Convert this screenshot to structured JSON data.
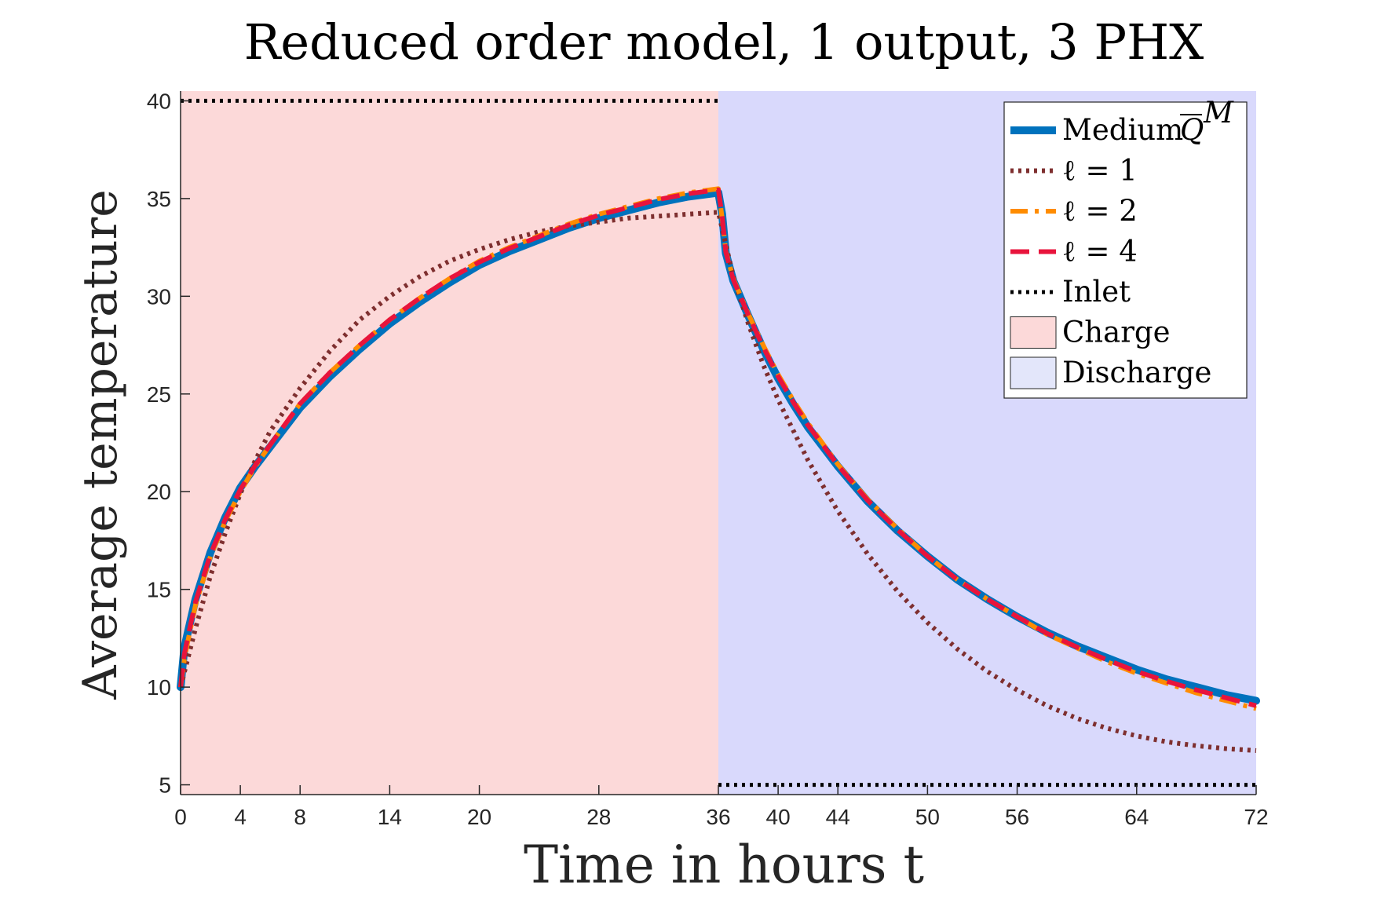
{
  "chart_data": {
    "type": "line",
    "title": "Reduced order model, 1 output, 3 PHX",
    "xlabel": "Time in hours t",
    "ylabel": "Average temperature",
    "xlim": [
      0,
      72
    ],
    "ylim": [
      4.5,
      40.5
    ],
    "xticks": [
      0,
      4,
      8,
      14,
      20,
      28,
      36,
      40,
      44,
      50,
      56,
      64,
      72
    ],
    "yticks": [
      5,
      10,
      15,
      20,
      25,
      30,
      35,
      40
    ],
    "grid": false,
    "legend_position": "top-right",
    "regions": [
      {
        "name": "Charge",
        "x_start": 0,
        "x_end": 36,
        "color": "#fcd9d9"
      },
      {
        "name": "Discharge",
        "x_start": 36,
        "x_end": 72,
        "color": "#d9d9fc"
      }
    ],
    "series": [
      {
        "name": "Medium Q̅ᴹ",
        "legend_text": "Medium",
        "legend_math": "Q",
        "legend_sup": "M",
        "color": "#0072bd",
        "style": "solid",
        "x": [
          0,
          0.25,
          0.5,
          1,
          2,
          3,
          4,
          5,
          6,
          8,
          10,
          12,
          14,
          16,
          18,
          20,
          22,
          24,
          26,
          28,
          30,
          32,
          34,
          35,
          36,
          36.25,
          36.5,
          37,
          38,
          39,
          40,
          41,
          42,
          44,
          46,
          48,
          50,
          52,
          54,
          56,
          58,
          60,
          62,
          64,
          66,
          68,
          70,
          72
        ],
        "y": [
          10.0,
          12.0,
          12.85,
          14.5,
          16.9,
          18.7,
          20.2,
          21.3,
          22.3,
          24.3,
          25.9,
          27.3,
          28.6,
          29.7,
          30.7,
          31.6,
          32.3,
          32.9,
          33.5,
          34.0,
          34.4,
          34.8,
          35.1,
          35.2,
          35.3,
          34.2,
          32.2,
          30.8,
          29.0,
          27.3,
          25.8,
          24.5,
          23.3,
          21.3,
          19.5,
          18.0,
          16.7,
          15.5,
          14.5,
          13.6,
          12.8,
          12.1,
          11.5,
          10.9,
          10.4,
          10.0,
          9.6,
          9.3
        ]
      },
      {
        "name": "ℓ = 1",
        "legend_text": "ℓ = 1",
        "color": "#7e2f2f",
        "style": "dotted",
        "x": [
          0,
          1,
          2,
          3,
          4,
          5,
          6,
          8,
          10,
          12,
          14,
          16,
          18,
          20,
          22,
          24,
          26,
          28,
          30,
          32,
          34,
          35,
          36,
          37,
          38,
          39,
          40,
          42,
          44,
          46,
          48,
          50,
          52,
          54,
          56,
          58,
          60,
          62,
          64,
          66,
          68,
          70,
          72
        ],
        "y": [
          10.0,
          13.0,
          15.7,
          17.9,
          19.9,
          21.6,
          23.1,
          25.3,
          27.2,
          28.8,
          30.0,
          31.0,
          31.8,
          32.4,
          32.9,
          33.3,
          33.6,
          33.8,
          34.0,
          34.1,
          34.2,
          34.25,
          34.3,
          31.0,
          28.6,
          26.5,
          24.7,
          21.6,
          19.0,
          16.8,
          14.9,
          13.3,
          11.95,
          10.8,
          9.85,
          9.05,
          8.4,
          7.9,
          7.5,
          7.2,
          7.0,
          6.85,
          6.75
        ]
      },
      {
        "name": "ℓ = 2",
        "legend_text": "ℓ = 2",
        "color": "#ff8c00",
        "style": "dash-dot",
        "x": [
          0,
          0.25,
          0.5,
          1,
          2,
          3,
          4,
          5,
          6,
          8,
          10,
          12,
          14,
          16,
          18,
          20,
          22,
          24,
          26,
          28,
          30,
          32,
          34,
          35,
          36,
          36.25,
          36.5,
          37,
          38,
          39,
          40,
          41,
          42,
          44,
          46,
          48,
          50,
          52,
          54,
          56,
          58,
          60,
          62,
          64,
          66,
          68,
          70,
          72
        ],
        "y": [
          10.0,
          11.4,
          12.4,
          14.2,
          16.7,
          18.5,
          20.0,
          21.3,
          22.4,
          24.5,
          26.1,
          27.5,
          28.8,
          29.9,
          30.9,
          31.8,
          32.5,
          33.1,
          33.7,
          34.2,
          34.6,
          35.0,
          35.3,
          35.4,
          35.5,
          34.0,
          32.3,
          30.9,
          29.1,
          27.5,
          26.0,
          24.7,
          23.5,
          21.4,
          19.6,
          18.1,
          16.7,
          15.5,
          14.5,
          13.6,
          12.7,
          12.0,
          11.3,
          10.7,
          10.2,
          9.7,
          9.3,
          8.9
        ]
      },
      {
        "name": "ℓ = 4",
        "legend_text": "ℓ = 4",
        "color": "#e8143c",
        "style": "dashed",
        "x": [
          0,
          0.25,
          0.5,
          1,
          2,
          3,
          4,
          5,
          6,
          8,
          10,
          12,
          14,
          16,
          18,
          20,
          22,
          24,
          26,
          28,
          30,
          32,
          34,
          35,
          36,
          36.25,
          36.5,
          37,
          38,
          39,
          40,
          41,
          42,
          44,
          46,
          48,
          50,
          52,
          54,
          56,
          58,
          60,
          62,
          64,
          66,
          68,
          70,
          72
        ],
        "y": [
          10.0,
          11.7,
          12.6,
          14.35,
          16.8,
          18.6,
          20.1,
          21.35,
          22.4,
          24.5,
          26.1,
          27.5,
          28.8,
          29.9,
          30.9,
          31.75,
          32.45,
          33.05,
          33.65,
          34.15,
          34.55,
          34.95,
          35.25,
          35.35,
          35.45,
          34.1,
          32.25,
          30.85,
          29.05,
          27.4,
          25.9,
          24.6,
          23.4,
          21.35,
          19.55,
          18.05,
          16.7,
          15.5,
          14.5,
          13.6,
          12.75,
          12.05,
          11.4,
          10.8,
          10.3,
          9.85,
          9.45,
          9.05
        ]
      },
      {
        "name": "Inlet",
        "legend_text": "Inlet",
        "color": "#000000",
        "style": "dotted",
        "segments": [
          {
            "x": [
              0,
              36
            ],
            "y": [
              40,
              40
            ]
          },
          {
            "x": [
              36,
              72
            ],
            "y": [
              5,
              5
            ]
          }
        ]
      }
    ],
    "legend_patches": [
      {
        "label": "Charge",
        "color": "#fcd9d9"
      },
      {
        "label": "Discharge",
        "color": "#e3e6fa"
      }
    ]
  }
}
